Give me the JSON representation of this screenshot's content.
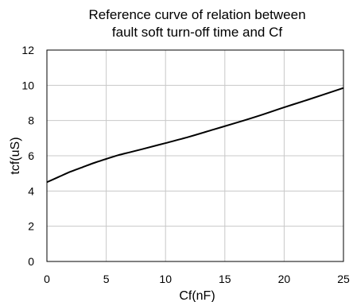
{
  "chart_data": {
    "type": "line",
    "title_lines": [
      "Reference curve of relation between",
      "fault soft turn-off time and Cf"
    ],
    "xlabel": "Cf(nF)",
    "ylabel": "tcf(uS)",
    "xlim": [
      0,
      25
    ],
    "ylim": [
      0,
      12
    ],
    "x_ticks": [
      0,
      5,
      10,
      15,
      20,
      25
    ],
    "y_ticks": [
      0,
      2,
      4,
      6,
      8,
      10,
      12
    ],
    "grid": true,
    "series": [
      {
        "x": [
          0,
          1,
          2,
          3,
          4,
          5,
          6,
          7,
          8,
          10,
          12,
          14,
          16,
          18,
          20,
          22,
          25
        ],
        "y": [
          4.5,
          4.8,
          5.1,
          5.35,
          5.6,
          5.82,
          6.03,
          6.2,
          6.37,
          6.72,
          7.08,
          7.48,
          7.88,
          8.3,
          8.75,
          9.18,
          9.85
        ]
      }
    ]
  }
}
